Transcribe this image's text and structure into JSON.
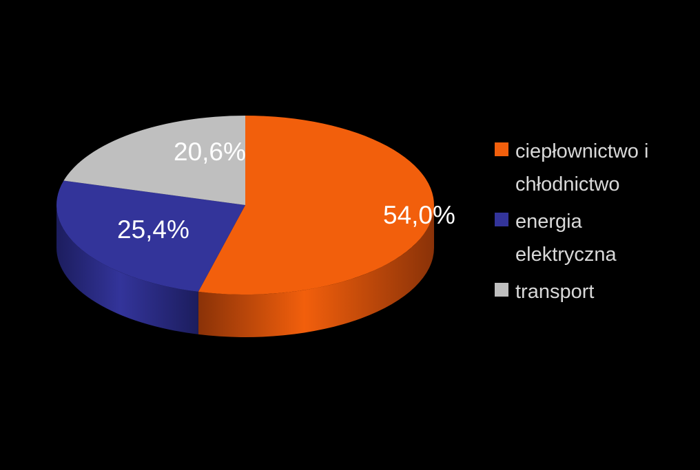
{
  "chart_data": {
    "type": "pie",
    "title": "",
    "slices": [
      {
        "label": "ciepłownictwo i chłodnictwo",
        "value": 54.0,
        "value_label": "54,0%",
        "color": "#f25f0c",
        "side_color": "#8a3208"
      },
      {
        "label": "energia elektryczna",
        "value": 25.4,
        "value_label": "25,4%",
        "color": "#33349a",
        "side_color": "#1c1d5e"
      },
      {
        "label": "transport",
        "value": 20.6,
        "value_label": "20,6%",
        "color": "#bfbfbf",
        "side_color": "#7a7a7a"
      }
    ],
    "legend_position": "right",
    "style": "3d"
  }
}
